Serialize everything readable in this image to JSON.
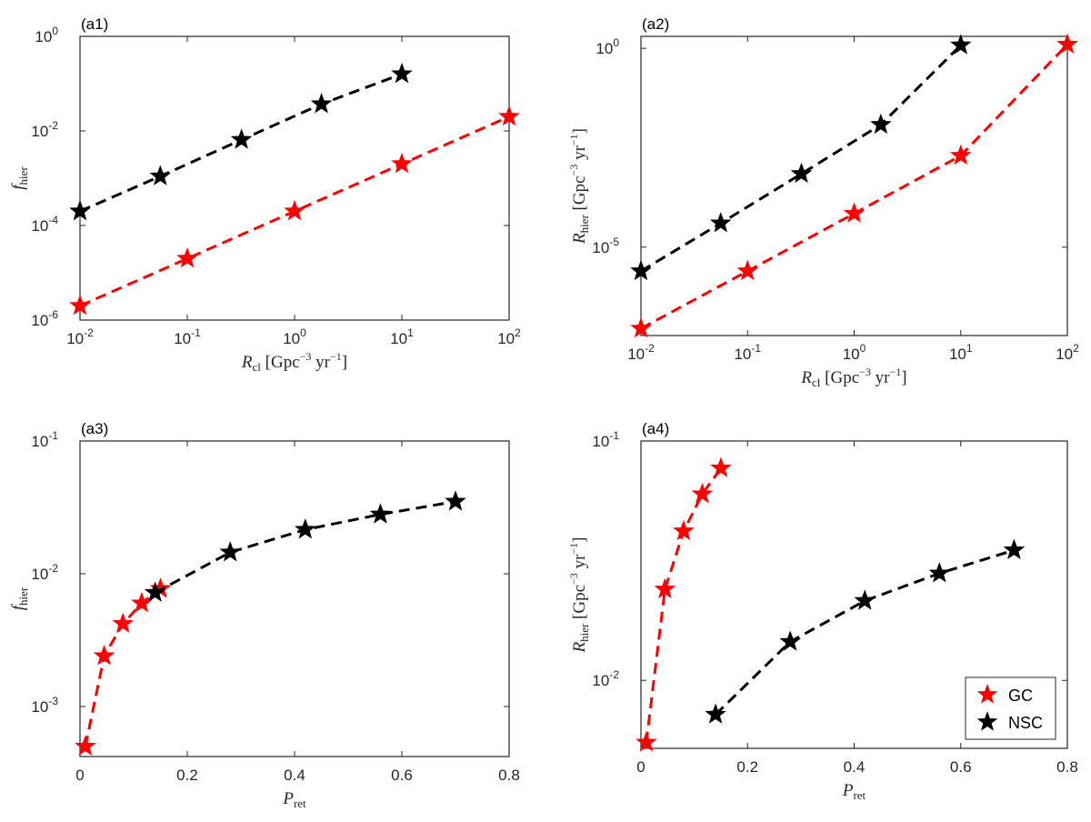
{
  "figure": {
    "legend": [
      {
        "label": "GC",
        "color": "#ff0000"
      },
      {
        "label": "NSC",
        "color": "#000000"
      }
    ]
  },
  "chart_data": [
    {
      "panel": "(a1)",
      "type": "line",
      "x_scale": "log",
      "y_scale": "log",
      "xlim": [
        0.01,
        100
      ],
      "ylim": [
        1e-06,
        1
      ],
      "xlabel": "R_cl [Gpc^-3 yr^-1]",
      "ylabel": "f_hier",
      "x_ticks": [
        {
          "v": 0.01,
          "b": "10",
          "e": "-2"
        },
        {
          "v": 0.1,
          "b": "10",
          "e": "-1"
        },
        {
          "v": 1,
          "b": "10",
          "e": "0"
        },
        {
          "v": 10,
          "b": "10",
          "e": "1"
        },
        {
          "v": 100,
          "b": "10",
          "e": "2"
        }
      ],
      "y_ticks": [
        {
          "v": 1e-06,
          "b": "10",
          "e": "-6"
        },
        {
          "v": 0.0001,
          "b": "10",
          "e": "-4"
        },
        {
          "v": 0.01,
          "b": "10",
          "e": "-2"
        },
        {
          "v": 1,
          "b": "10",
          "e": "0"
        }
      ],
      "series": [
        {
          "name": "GC",
          "color": "#ff0000",
          "x": [
            0.01,
            0.1,
            1,
            10,
            100
          ],
          "y": [
            2e-06,
            2e-05,
            0.0002,
            0.002,
            0.02
          ]
        },
        {
          "name": "NSC",
          "color": "#000000",
          "x": [
            0.01,
            0.056,
            0.32,
            1.78,
            10
          ],
          "y": [
            0.0002,
            0.0011,
            0.0065,
            0.037,
            0.16
          ]
        }
      ]
    },
    {
      "panel": "(a2)",
      "type": "line",
      "x_scale": "log",
      "y_scale": "log",
      "xlim": [
        0.01,
        100
      ],
      "ylim": [
        6e-08,
        2
      ],
      "xlabel": "R_cl [Gpc^-3 yr^-1]",
      "ylabel": "R_hier [Gpc^-3 yr^-1]",
      "x_ticks": [
        {
          "v": 0.01,
          "b": "10",
          "e": "-2"
        },
        {
          "v": 0.1,
          "b": "10",
          "e": "-1"
        },
        {
          "v": 1,
          "b": "10",
          "e": "0"
        },
        {
          "v": 10,
          "b": "10",
          "e": "1"
        },
        {
          "v": 100,
          "b": "10",
          "e": "2"
        }
      ],
      "y_ticks": [
        {
          "v": 1e-05,
          "b": "10",
          "e": "-5"
        },
        {
          "v": 1,
          "b": "10",
          "e": "0"
        }
      ],
      "series": [
        {
          "name": "GC",
          "color": "#ff0000",
          "x": [
            0.01,
            0.1,
            1,
            10,
            100
          ],
          "y": [
            9e-08,
            2.5e-06,
            7e-05,
            0.002,
            1.25
          ]
        },
        {
          "name": "NSC",
          "color": "#000000",
          "x": [
            0.01,
            0.056,
            0.32,
            1.78,
            10
          ],
          "y": [
            2.5e-06,
            4e-05,
            0.0007,
            0.012,
            1.2
          ]
        }
      ]
    },
    {
      "panel": "(a3)",
      "type": "line",
      "x_scale": "linear",
      "y_scale": "log",
      "xlim": [
        0,
        0.8
      ],
      "ylim": [
        0.00042,
        0.1
      ],
      "xlabel": "P_ret",
      "ylabel": "f_hier",
      "x_ticks": [
        {
          "v": 0,
          "t": "0"
        },
        {
          "v": 0.2,
          "t": "0.2"
        },
        {
          "v": 0.4,
          "t": "0.4"
        },
        {
          "v": 0.6,
          "t": "0.6"
        },
        {
          "v": 0.8,
          "t": "0.8"
        }
      ],
      "y_ticks": [
        {
          "v": 0.001,
          "b": "10",
          "e": "-3"
        },
        {
          "v": 0.01,
          "b": "10",
          "e": "-2"
        },
        {
          "v": 0.1,
          "b": "10",
          "e": "-1"
        }
      ],
      "series": [
        {
          "name": "GC",
          "color": "#ff0000",
          "x": [
            0.01,
            0.045,
            0.08,
            0.115,
            0.15
          ],
          "y": [
            0.0005,
            0.0024,
            0.0042,
            0.006,
            0.0077
          ]
        },
        {
          "name": "NSC",
          "color": "#000000",
          "x": [
            0.14,
            0.28,
            0.42,
            0.56,
            0.7
          ],
          "y": [
            0.0072,
            0.0145,
            0.0215,
            0.028,
            0.035
          ]
        }
      ]
    },
    {
      "panel": "(a4)",
      "type": "line",
      "x_scale": "linear",
      "y_scale": "log",
      "xlim": [
        0,
        0.8
      ],
      "ylim": [
        0.0052,
        0.1
      ],
      "xlabel": "P_ret",
      "ylabel": "R_hier [Gpc^-3 yr^-1]",
      "x_ticks": [
        {
          "v": 0,
          "t": "0"
        },
        {
          "v": 0.2,
          "t": "0.2"
        },
        {
          "v": 0.4,
          "t": "0.4"
        },
        {
          "v": 0.6,
          "t": "0.6"
        },
        {
          "v": 0.8,
          "t": "0.8"
        }
      ],
      "y_ticks": [
        {
          "v": 0.01,
          "b": "10",
          "e": "-2"
        },
        {
          "v": 0.1,
          "b": "10",
          "e": "-1"
        }
      ],
      "series": [
        {
          "name": "GC",
          "color": "#ff0000",
          "x": [
            0.01,
            0.045,
            0.08,
            0.115,
            0.15
          ],
          "y": [
            0.0055,
            0.024,
            0.042,
            0.06,
            0.077
          ]
        },
        {
          "name": "NSC",
          "color": "#000000",
          "x": [
            0.14,
            0.28,
            0.42,
            0.56,
            0.7
          ],
          "y": [
            0.0072,
            0.0145,
            0.0215,
            0.028,
            0.035
          ]
        }
      ]
    }
  ]
}
